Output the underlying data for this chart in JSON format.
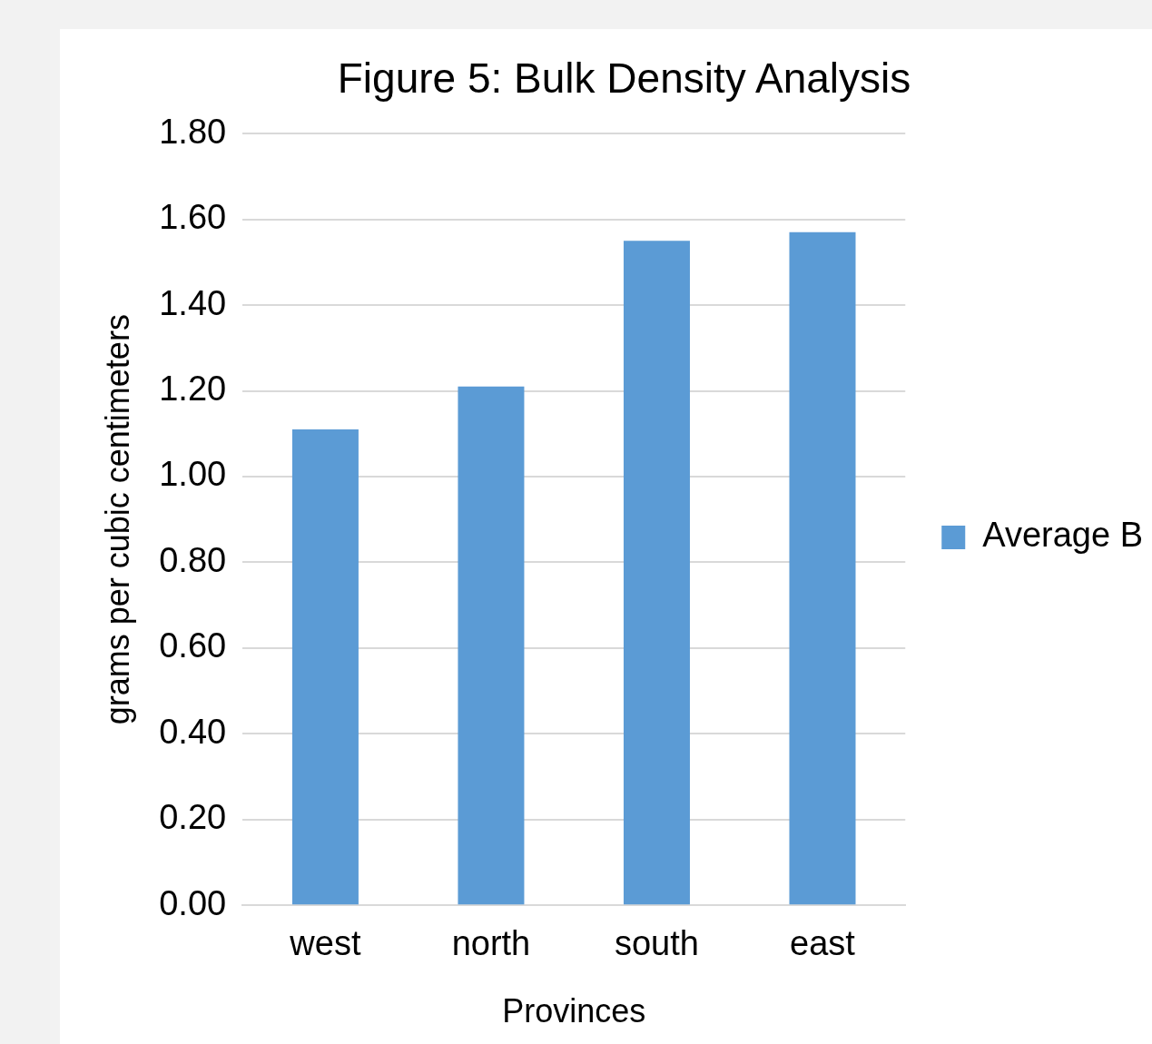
{
  "chart_data": {
    "type": "bar",
    "title": "Figure 5: Bulk Density Analysis",
    "xlabel": "Provinces",
    "ylabel": "grams per cubic centimeters",
    "categories": [
      "west",
      "north",
      "south",
      "east"
    ],
    "series": [
      {
        "name": "Average B",
        "color": "#5b9bd5",
        "values": [
          1.11,
          1.21,
          1.55,
          1.57
        ]
      }
    ],
    "ylim": [
      0,
      1.8
    ],
    "yticks": [
      {
        "value": 0,
        "label": "0.00"
      },
      {
        "value": 0.2,
        "label": "0.20"
      },
      {
        "value": 0.4,
        "label": "0.40"
      },
      {
        "value": 0.6,
        "label": "0.60"
      },
      {
        "value": 0.8,
        "label": "0.80"
      },
      {
        "value": 1,
        "label": "1.00"
      },
      {
        "value": 1.2,
        "label": "1.20"
      },
      {
        "value": 1.4,
        "label": "1.40"
      },
      {
        "value": 1.6,
        "label": "1.60"
      },
      {
        "value": 1.8,
        "label": "1.80"
      }
    ],
    "grid": "y",
    "legend": "right"
  }
}
